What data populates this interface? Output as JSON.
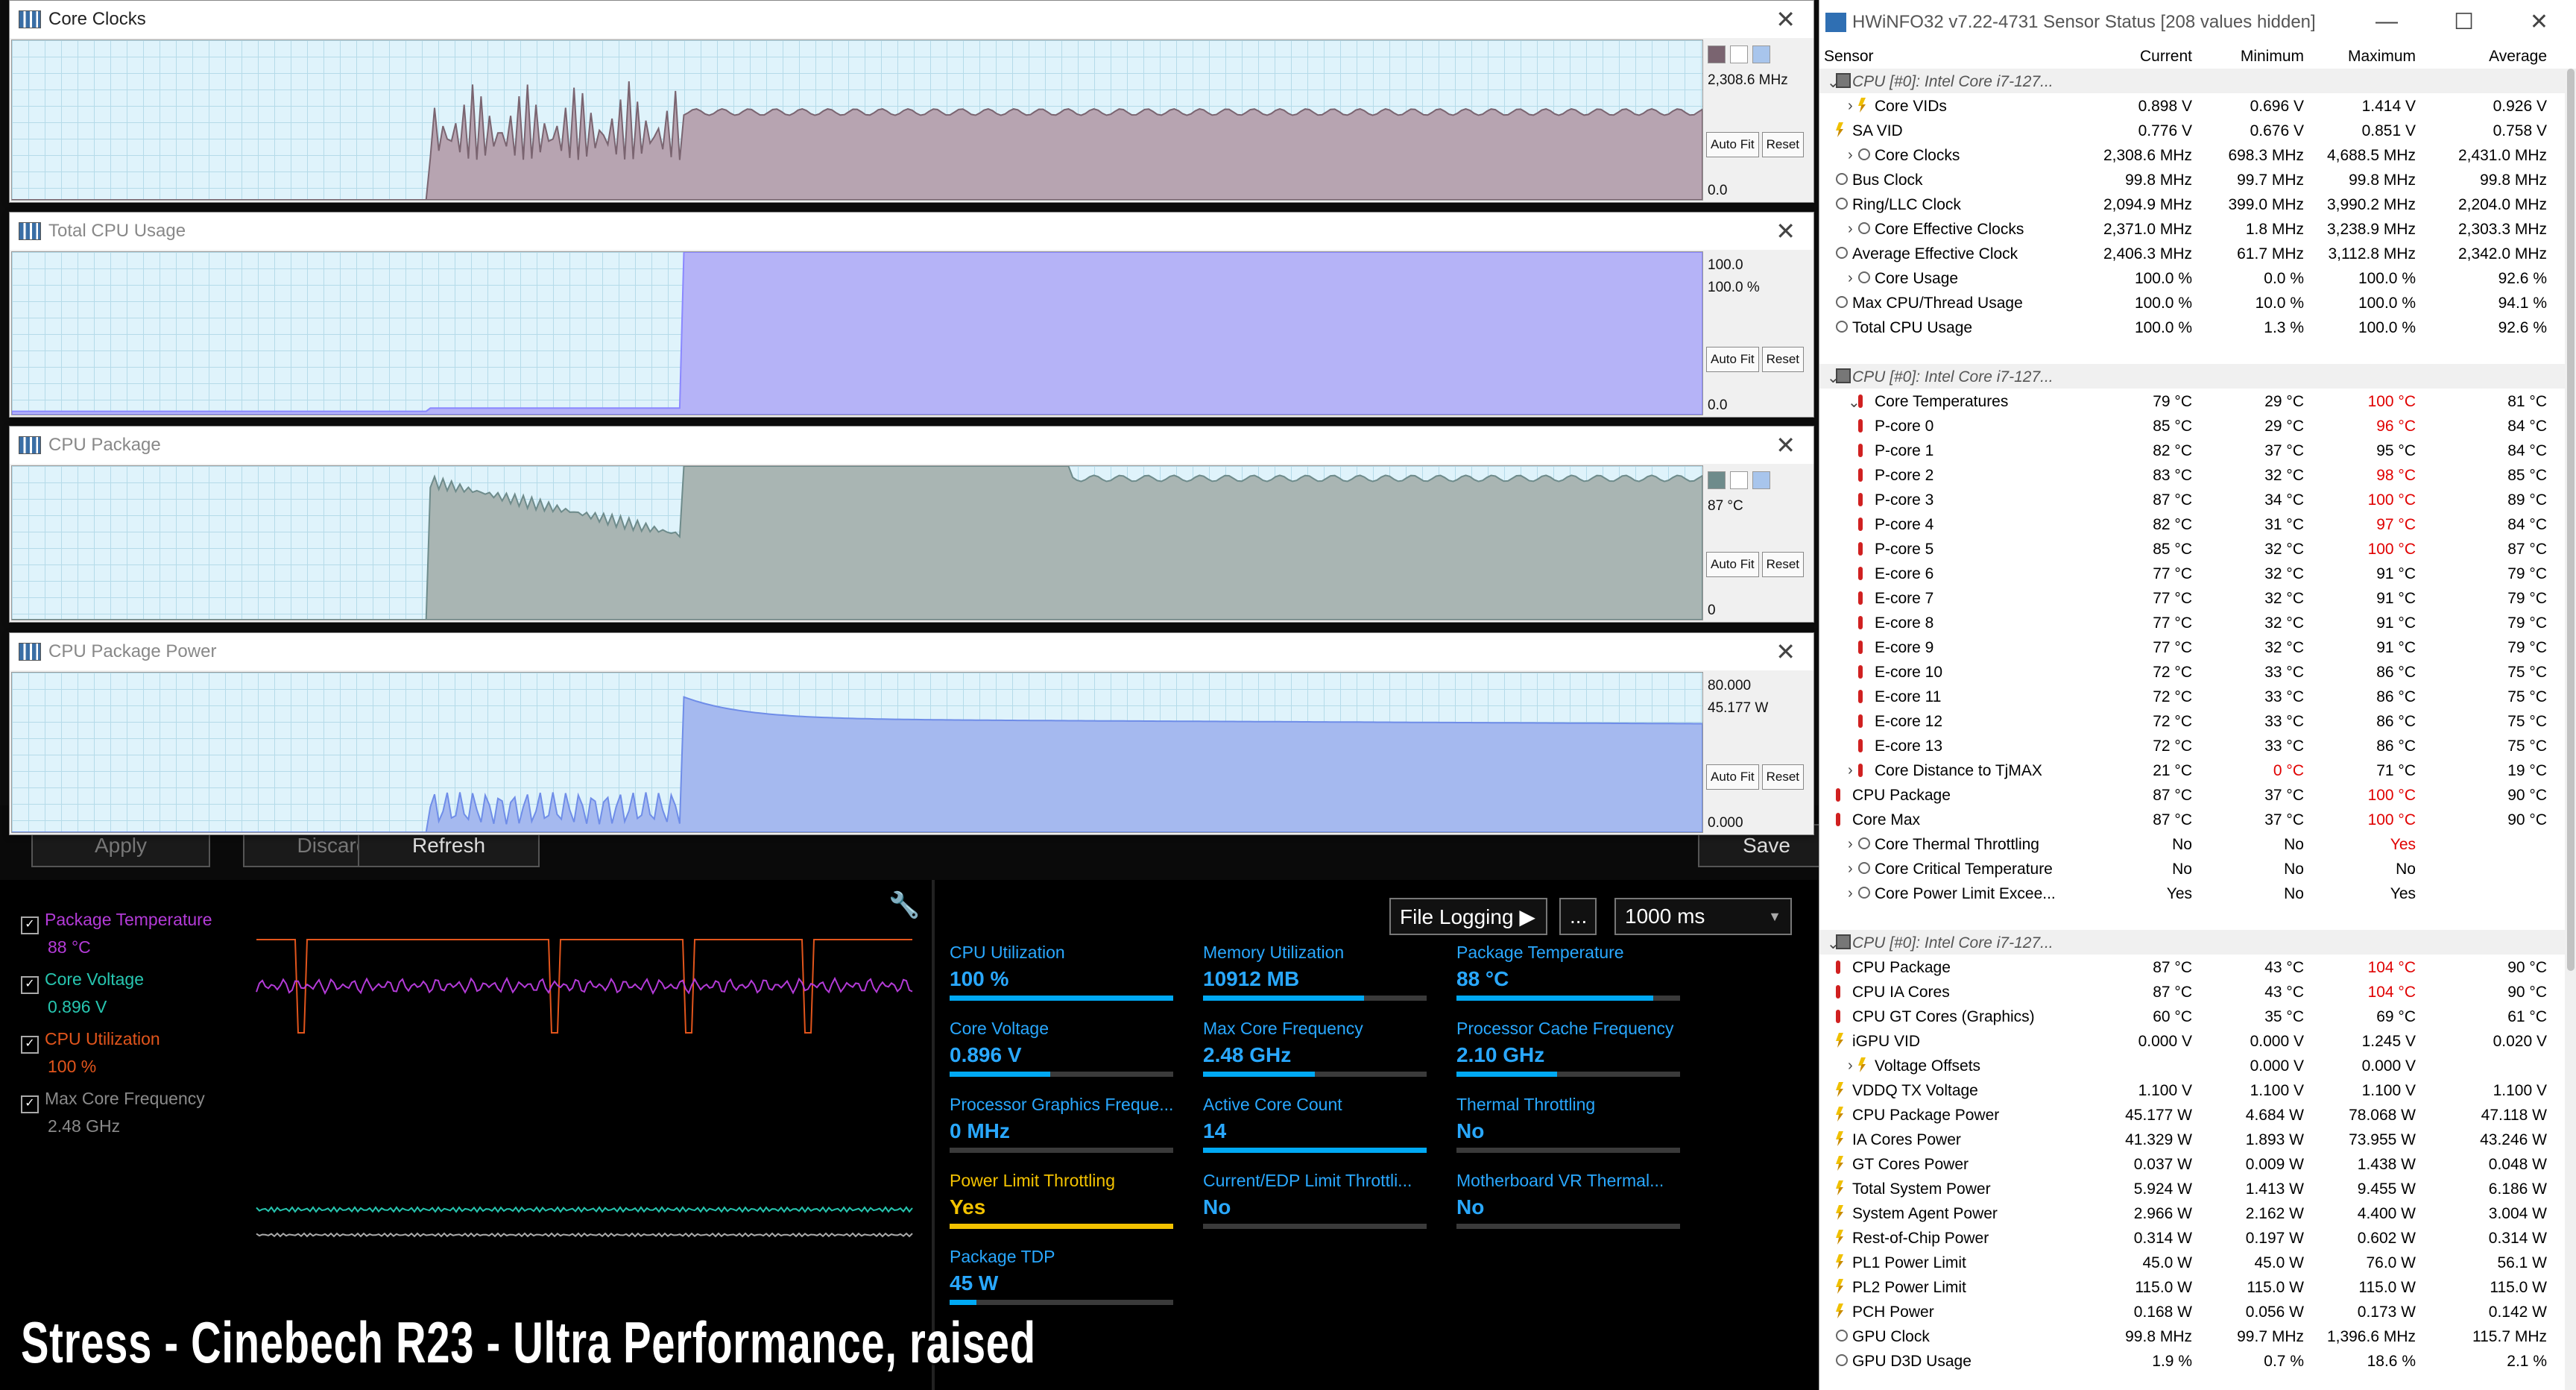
{
  "underlying_app": {
    "buttons": [
      "Apply",
      "Discard",
      "Refresh",
      "Save"
    ]
  },
  "graph_windows": [
    {
      "title": "Core Clocks",
      "top_value": "",
      "current": "2,308.6 MHz",
      "bottom": "0.0",
      "auto_fit": "Auto Fit",
      "reset": "Reset",
      "series_color": "#7a6470",
      "fill": "#b7a4b1"
    },
    {
      "title": "Total CPU Usage",
      "top_value": "100.0",
      "current": "100.0 %",
      "bottom": "0.0",
      "auto_fit": "Auto Fit",
      "reset": "Reset",
      "series_color": "#8a88ff",
      "fill": "#b5b3f7"
    },
    {
      "title": "CPU Package",
      "top_value": "",
      "current": "87 °C",
      "bottom": "0",
      "auto_fit": "Auto Fit",
      "reset": "Reset",
      "series_color": "#6e8b8b",
      "fill": "#a9b5b3"
    },
    {
      "title": "CPU Package Power",
      "top_value": "80.000",
      "current": "45.177 W",
      "bottom": "0.000",
      "auto_fit": "Auto Fit",
      "reset": "Reset",
      "series_color": "#6f8de8",
      "fill": "#a5b9ef"
    }
  ],
  "monitor": {
    "legend": [
      {
        "label": "Package Temperature",
        "value": "88 °C",
        "color": "#b43bd8",
        "checked": true
      },
      {
        "label": "Core Voltage",
        "value": "0.896 V",
        "color": "#27c6b0",
        "checked": true
      },
      {
        "label": "CPU Utilization",
        "value": "100 %",
        "color": "#e2551c",
        "checked": true
      },
      {
        "label": "Max Core Frequency",
        "value": "2.48 GHz",
        "color": "#8a8a8a",
        "checked": true
      }
    ],
    "file_logging": "File Logging ▶",
    "more": "...",
    "interval": "1000 ms",
    "tiles": [
      {
        "label": "CPU Utilization",
        "value": "100 %",
        "level": 1.0,
        "warn": false
      },
      {
        "label": "Memory Utilization",
        "value": "10912  MB",
        "level": 0.72,
        "warn": false
      },
      {
        "label": "Package Temperature",
        "value": "88 °C",
        "level": 0.88,
        "warn": false
      },
      {
        "label": "Core Voltage",
        "value": "0.896 V",
        "level": 0.45,
        "warn": false
      },
      {
        "label": "Max Core Frequency",
        "value": "2.48 GHz",
        "level": 0.5,
        "warn": false
      },
      {
        "label": "Processor Cache Frequency",
        "value": "2.10 GHz",
        "level": 0.45,
        "warn": false
      },
      {
        "label": "Processor Graphics Freque...",
        "value": "0 MHz",
        "level": 0,
        "warn": false
      },
      {
        "label": "Active Core Count",
        "value": "14",
        "level": 1.0,
        "warn": false
      },
      {
        "label": "Thermal Throttling",
        "value": "No",
        "level": 0,
        "warn": false
      },
      {
        "label": "Power Limit Throttling",
        "value": "Yes",
        "level": 1.0,
        "warn": true
      },
      {
        "label": "Current/EDP Limit Throttli...",
        "value": "No",
        "level": 0,
        "warn": false
      },
      {
        "label": "Motherboard VR Thermal...",
        "value": "No",
        "level": 0,
        "warn": false
      },
      {
        "label": "Package TDP",
        "value": "45 W",
        "level": 0.12,
        "warn": false
      }
    ]
  },
  "caption": "Stress - Cinebech R23 - Ultra Performance, raised",
  "hwinfo": {
    "title": "HWiNFO32 v7.22-4731 Sensor Status [208 values hidden]",
    "columns": [
      "Sensor",
      "Current",
      "Minimum",
      "Maximum",
      "Average"
    ],
    "rows": [
      {
        "g": 1,
        "name": "CPU [#0]: Intel Core i7-127...",
        "ico": "g",
        "exp": "⌄"
      },
      {
        "name": "Core VIDs",
        "c": "0.898 V",
        "mi": "0.696 V",
        "ma": "1.414 V",
        "av": "0.926 V",
        "ico": "v",
        "exp": "›",
        "l": 2
      },
      {
        "name": "SA VID",
        "c": "0.776 V",
        "mi": "0.676 V",
        "ma": "0.851 V",
        "av": "0.758 V",
        "ico": "v"
      },
      {
        "name": "Core Clocks",
        "c": "2,308.6 MHz",
        "mi": "698.3 MHz",
        "ma": "4,688.5 MHz",
        "av": "2,431.0 MHz",
        "ico": "c",
        "exp": "›",
        "l": 2
      },
      {
        "name": "Bus Clock",
        "c": "99.8 MHz",
        "mi": "99.7 MHz",
        "ma": "99.8 MHz",
        "av": "99.8 MHz",
        "ico": "c"
      },
      {
        "name": "Ring/LLC Clock",
        "c": "2,094.9 MHz",
        "mi": "399.0 MHz",
        "ma": "3,990.2 MHz",
        "av": "2,204.0 MHz",
        "ico": "c"
      },
      {
        "name": "Core Effective Clocks",
        "c": "2,371.0 MHz",
        "mi": "1.8 MHz",
        "ma": "3,238.9 MHz",
        "av": "2,303.3 MHz",
        "ico": "c",
        "exp": "›",
        "l": 2
      },
      {
        "name": "Average Effective Clock",
        "c": "2,406.3 MHz",
        "mi": "61.7 MHz",
        "ma": "3,112.8 MHz",
        "av": "2,342.0 MHz",
        "ico": "c"
      },
      {
        "name": "Core Usage",
        "c": "100.0 %",
        "mi": "0.0 %",
        "ma": "100.0 %",
        "av": "92.6 %",
        "ico": "c",
        "exp": "›",
        "l": 2
      },
      {
        "name": "Max CPU/Thread Usage",
        "c": "100.0 %",
        "mi": "10.0 %",
        "ma": "100.0 %",
        "av": "94.1 %",
        "ico": "c"
      },
      {
        "name": "Total CPU Usage",
        "c": "100.0 %",
        "mi": "1.3 %",
        "ma": "100.0 %",
        "av": "92.6 %",
        "ico": "c"
      },
      {
        "blank": 1
      },
      {
        "g": 1,
        "name": "CPU [#0]: Intel Core i7-127...",
        "ico": "g",
        "exp": "⌄"
      },
      {
        "name": "Core Temperatures",
        "c": "79 °C",
        "mi": "29 °C",
        "ma": "100 °C",
        "av": "81 °C",
        "ico": "t",
        "exp": "⌄",
        "l": 2,
        "mr": 1
      },
      {
        "name": "P-core 0",
        "c": "85 °C",
        "mi": "29 °C",
        "ma": "96 °C",
        "av": "84 °C",
        "ico": "t",
        "l": 2,
        "mr": 1
      },
      {
        "name": "P-core 1",
        "c": "82 °C",
        "mi": "37 °C",
        "ma": "95 °C",
        "av": "84 °C",
        "ico": "t",
        "l": 2
      },
      {
        "name": "P-core 2",
        "c": "83 °C",
        "mi": "32 °C",
        "ma": "98 °C",
        "av": "85 °C",
        "ico": "t",
        "l": 2,
        "mr": 1
      },
      {
        "name": "P-core 3",
        "c": "87 °C",
        "mi": "34 °C",
        "ma": "100 °C",
        "av": "89 °C",
        "ico": "t",
        "l": 2,
        "mr": 1
      },
      {
        "name": "P-core 4",
        "c": "82 °C",
        "mi": "31 °C",
        "ma": "97 °C",
        "av": "84 °C",
        "ico": "t",
        "l": 2,
        "mr": 1
      },
      {
        "name": "P-core 5",
        "c": "85 °C",
        "mi": "32 °C",
        "ma": "100 °C",
        "av": "87 °C",
        "ico": "t",
        "l": 2,
        "mr": 1
      },
      {
        "name": "E-core 6",
        "c": "77 °C",
        "mi": "32 °C",
        "ma": "91 °C",
        "av": "79 °C",
        "ico": "t",
        "l": 2
      },
      {
        "name": "E-core 7",
        "c": "77 °C",
        "mi": "32 °C",
        "ma": "91 °C",
        "av": "79 °C",
        "ico": "t",
        "l": 2
      },
      {
        "name": "E-core 8",
        "c": "77 °C",
        "mi": "32 °C",
        "ma": "91 °C",
        "av": "79 °C",
        "ico": "t",
        "l": 2
      },
      {
        "name": "E-core 9",
        "c": "77 °C",
        "mi": "32 °C",
        "ma": "91 °C",
        "av": "79 °C",
        "ico": "t",
        "l": 2
      },
      {
        "name": "E-core 10",
        "c": "72 °C",
        "mi": "33 °C",
        "ma": "86 °C",
        "av": "75 °C",
        "ico": "t",
        "l": 2
      },
      {
        "name": "E-core 11",
        "c": "72 °C",
        "mi": "33 °C",
        "ma": "86 °C",
        "av": "75 °C",
        "ico": "t",
        "l": 2
      },
      {
        "name": "E-core 12",
        "c": "72 °C",
        "mi": "33 °C",
        "ma": "86 °C",
        "av": "75 °C",
        "ico": "t",
        "l": 2
      },
      {
        "name": "E-core 13",
        "c": "72 °C",
        "mi": "33 °C",
        "ma": "86 °C",
        "av": "75 °C",
        "ico": "t",
        "l": 2
      },
      {
        "name": "Core Distance to TjMAX",
        "c": "21 °C",
        "mi": "0 °C",
        "ma": "71 °C",
        "av": "19 °C",
        "ico": "t",
        "exp": "›",
        "l": 2,
        "mir": 1
      },
      {
        "name": "CPU Package",
        "c": "87 °C",
        "mi": "37 °C",
        "ma": "100 °C",
        "av": "90 °C",
        "ico": "t",
        "mr": 1
      },
      {
        "name": "Core Max",
        "c": "87 °C",
        "mi": "37 °C",
        "ma": "100 °C",
        "av": "90 °C",
        "ico": "t",
        "mr": 1
      },
      {
        "name": "Core Thermal Throttling",
        "c": "No",
        "mi": "No",
        "ma": "Yes",
        "av": "",
        "ico": "c",
        "exp": "›",
        "l": 2,
        "mr": 1
      },
      {
        "name": "Core Critical Temperature",
        "c": "No",
        "mi": "No",
        "ma": "No",
        "av": "",
        "ico": "c",
        "exp": "›",
        "l": 2
      },
      {
        "name": "Core Power Limit Excee...",
        "c": "Yes",
        "mi": "No",
        "ma": "Yes",
        "av": "",
        "ico": "c",
        "exp": "›",
        "l": 2
      },
      {
        "blank": 1
      },
      {
        "g": 1,
        "name": "CPU [#0]: Intel Core i7-127...",
        "ico": "g",
        "exp": "⌄"
      },
      {
        "name": "CPU Package",
        "c": "87 °C",
        "mi": "43 °C",
        "ma": "104 °C",
        "av": "90 °C",
        "ico": "t",
        "mr": 1
      },
      {
        "name": "CPU IA Cores",
        "c": "87 °C",
        "mi": "43 °C",
        "ma": "104 °C",
        "av": "90 °C",
        "ico": "t",
        "mr": 1
      },
      {
        "name": "CPU GT Cores (Graphics)",
        "c": "60 °C",
        "mi": "35 °C",
        "ma": "69 °C",
        "av": "61 °C",
        "ico": "t"
      },
      {
        "name": "iGPU VID",
        "c": "0.000 V",
        "mi": "0.000 V",
        "ma": "1.245 V",
        "av": "0.020 V",
        "ico": "v"
      },
      {
        "name": "Voltage Offsets",
        "c": "",
        "mi": "0.000 V",
        "ma": "0.000 V",
        "av": "",
        "ico": "v",
        "exp": "›",
        "l": 2
      },
      {
        "name": "VDDQ TX Voltage",
        "c": "1.100 V",
        "mi": "1.100 V",
        "ma": "1.100 V",
        "av": "1.100 V",
        "ico": "v"
      },
      {
        "name": "CPU Package Power",
        "c": "45.177 W",
        "mi": "4.684 W",
        "ma": "78.068 W",
        "av": "47.118 W",
        "ico": "v"
      },
      {
        "name": "IA Cores Power",
        "c": "41.329 W",
        "mi": "1.893 W",
        "ma": "73.955 W",
        "av": "43.246 W",
        "ico": "v"
      },
      {
        "name": "GT Cores Power",
        "c": "0.037 W",
        "mi": "0.009 W",
        "ma": "1.438 W",
        "av": "0.048 W",
        "ico": "v"
      },
      {
        "name": "Total System Power",
        "c": "5.924 W",
        "mi": "1.413 W",
        "ma": "9.455 W",
        "av": "6.186 W",
        "ico": "v"
      },
      {
        "name": "System Agent Power",
        "c": "2.966 W",
        "mi": "2.162 W",
        "ma": "4.400 W",
        "av": "3.004 W",
        "ico": "v"
      },
      {
        "name": "Rest-of-Chip Power",
        "c": "0.314 W",
        "mi": "0.197 W",
        "ma": "0.602 W",
        "av": "0.314 W",
        "ico": "v"
      },
      {
        "name": "PL1 Power Limit",
        "c": "45.0 W",
        "mi": "45.0 W",
        "ma": "76.0 W",
        "av": "56.1 W",
        "ico": "v"
      },
      {
        "name": "PL2 Power Limit",
        "c": "115.0 W",
        "mi": "115.0 W",
        "ma": "115.0 W",
        "av": "115.0 W",
        "ico": "v"
      },
      {
        "name": "PCH Power",
        "c": "0.168 W",
        "mi": "0.056 W",
        "ma": "0.173 W",
        "av": "0.142 W",
        "ico": "v"
      },
      {
        "name": "GPU Clock",
        "c": "99.8 MHz",
        "mi": "99.7 MHz",
        "ma": "1,396.6 MHz",
        "av": "115.7 MHz",
        "ico": "c"
      },
      {
        "name": "GPU D3D Usage",
        "c": "1.9 %",
        "mi": "0.7 %",
        "ma": "18.6 %",
        "av": "2.1 %",
        "ico": "c"
      }
    ]
  }
}
